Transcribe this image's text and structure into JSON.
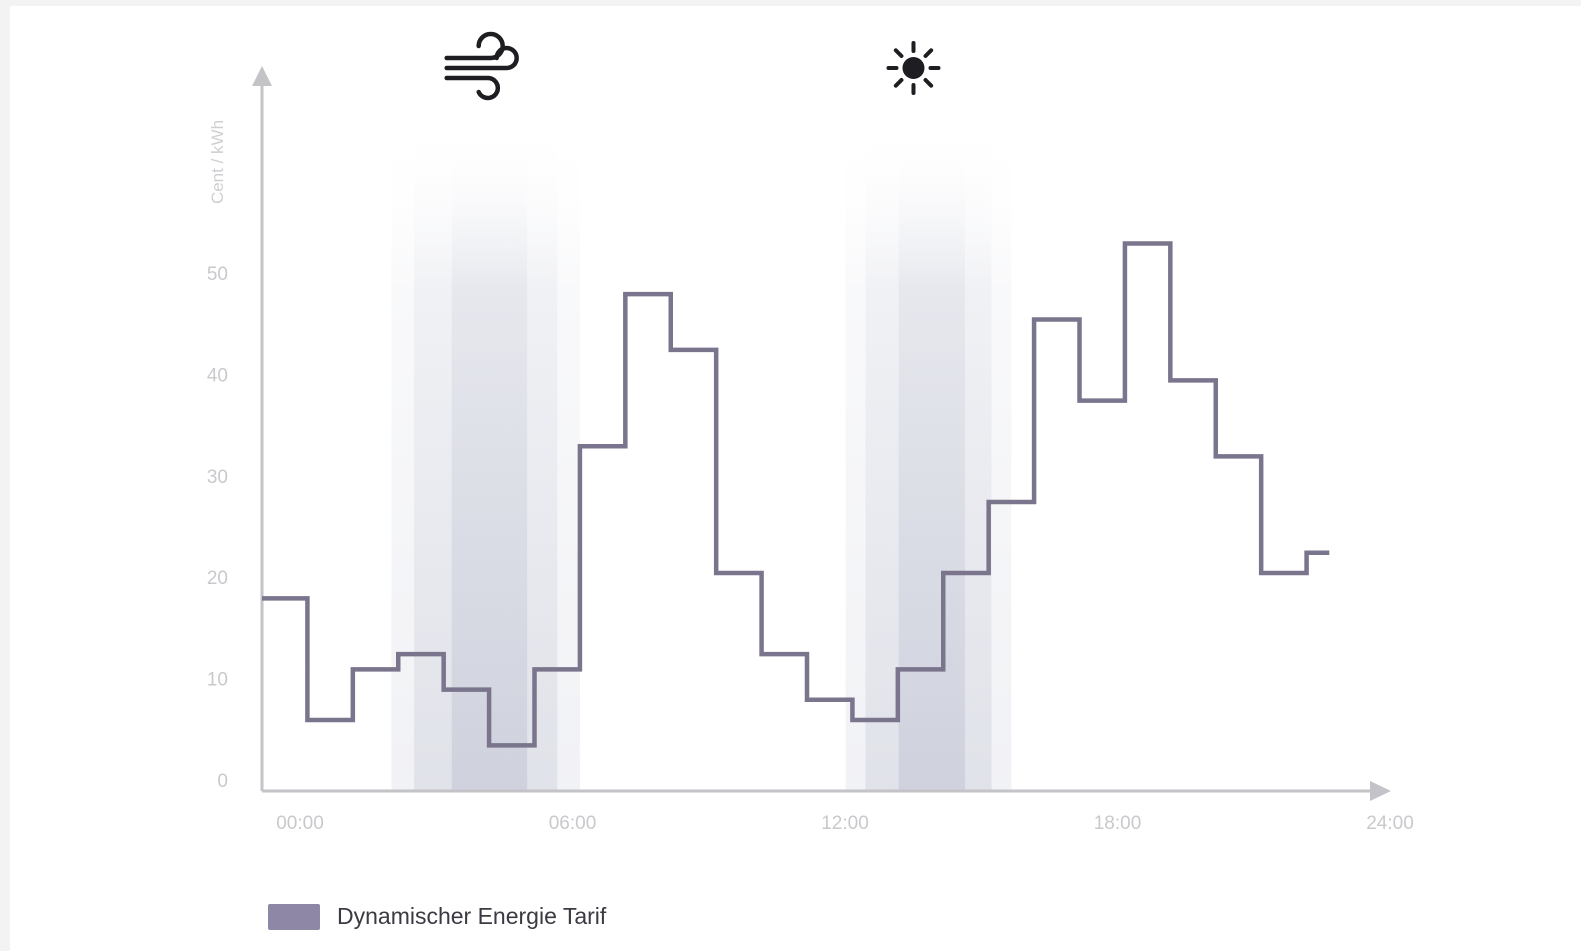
{
  "colors": {
    "line": "#7a748c",
    "axis": "#c3c3c8",
    "band": "#9aa0b8",
    "icon": "#1e1e22",
    "legend_swatch": "#8e88a6"
  },
  "chart_data": {
    "type": "line",
    "step": true,
    "ylabel": "Cent / kWh",
    "xlabel": "",
    "ylim": [
      0,
      58
    ],
    "xlim": [
      0,
      24
    ],
    "yticks": [
      "0",
      "10",
      "20",
      "30",
      "40",
      "50"
    ],
    "xticks": [
      "00:00",
      "06:00",
      "12:00",
      "18:00",
      "24:00"
    ],
    "grid": false,
    "legend_position": "bottom-left",
    "series": [
      {
        "name": "Dynamischer Energie Tarif",
        "hour_start": [
          0,
          1,
          2,
          3,
          4,
          5,
          6,
          7,
          8,
          9,
          10,
          11,
          12,
          13,
          14,
          15,
          16,
          17,
          18,
          19,
          20,
          21,
          22,
          23
        ],
        "values": [
          19,
          7,
          12,
          13.5,
          10,
          4.5,
          12,
          34,
          49,
          43.5,
          21.5,
          13.5,
          9,
          7,
          12,
          21.5,
          28.5,
          46.5,
          38.5,
          54,
          40.5,
          33,
          21.5,
          23.5
        ],
        "end_hour": 23.5
      }
    ],
    "highlight_bands": [
      {
        "icon": "wind-icon",
        "from": 3,
        "to": 7
      },
      {
        "icon": "sun-icon",
        "from": 13,
        "to": 16.5
      }
    ]
  }
}
